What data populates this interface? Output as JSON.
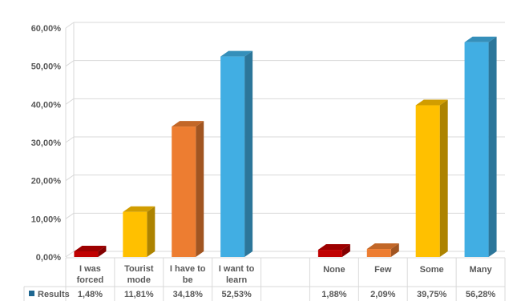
{
  "chart_data": {
    "type": "bar",
    "ylim": [
      0,
      60
    ],
    "y_ticks": [
      "0,00%",
      "10,00%",
      "20,00%",
      "30,00%",
      "40,00%",
      "50,00%",
      "60,00%"
    ],
    "grid": true,
    "legend": "data table, bottom-left",
    "categories": [
      [
        "I was",
        "forced"
      ],
      [
        "Tourist",
        "mode"
      ],
      [
        "I have to",
        "be"
      ],
      [
        "I want to",
        "learn"
      ],
      [
        ""
      ],
      [
        "None"
      ],
      [
        "Few"
      ],
      [
        "Some"
      ],
      [
        "Many"
      ]
    ],
    "series": [
      {
        "name": "Results",
        "values": [
          1.48,
          11.81,
          34.18,
          52.53,
          null,
          1.88,
          2.09,
          39.75,
          56.28
        ],
        "labels": [
          "1,48%",
          "11,81%",
          "34,18%",
          "52,53%",
          "",
          "1,88%",
          "2,09%",
          "39,75%",
          "56,28%"
        ]
      }
    ],
    "colors": [
      "#c00000",
      "#ffc000",
      "#ed7d31",
      "#41aee3",
      "",
      "#c00000",
      "#ed7d31",
      "#ffc000",
      "#41aee3"
    ],
    "legend_color": "#1f6791"
  }
}
